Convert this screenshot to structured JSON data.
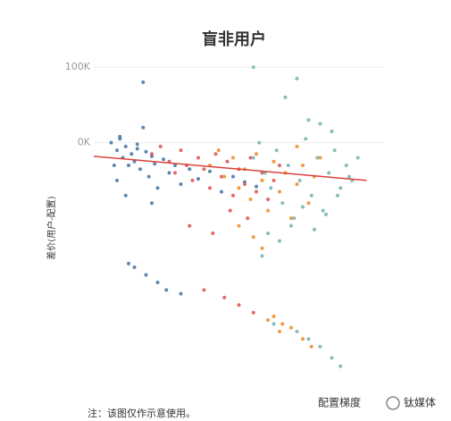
{
  "chart_data": {
    "type": "scatter",
    "title": "盲非用户",
    "y_label": "差价(用户-配置)",
    "x_label": "配置梯度",
    "note": "注：该图仅作示意使用。",
    "watermark": "钛媒体",
    "xlim": [
      0,
      100
    ],
    "ylim": [
      -320000,
      112000
    ],
    "yticks": [
      {
        "value": 100000,
        "label": "100K"
      },
      {
        "value": 0,
        "label": "0K"
      }
    ],
    "grid": true,
    "series": [
      {
        "color": "#4e79a7",
        "x": [
          6,
          8,
          9,
          10,
          11,
          12,
          13,
          14,
          15,
          16,
          17,
          18,
          19,
          20,
          21,
          22,
          24,
          26,
          28,
          30,
          33,
          36,
          40,
          44,
          48,
          52,
          56,
          12,
          14,
          18,
          22,
          25,
          30,
          8,
          11,
          15,
          20,
          9,
          17,
          7
        ],
        "values": [
          0,
          -10000,
          5000,
          -20000,
          -5000,
          -30000,
          -15000,
          -25000,
          -8000,
          -35000,
          20000,
          -12000,
          -45000,
          -18000,
          -28000,
          -60000,
          -22000,
          -40000,
          -30000,
          -55000,
          -35000,
          -48000,
          -38000,
          -65000,
          -45000,
          -52000,
          -58000,
          -160000,
          -165000,
          -175000,
          -185000,
          -195000,
          -200000,
          -50000,
          -70000,
          -2000,
          -80000,
          8000,
          80000,
          -30000
        ]
      },
      {
        "color": "#e15759",
        "x": [
          20,
          23,
          26,
          28,
          30,
          32,
          34,
          36,
          38,
          40,
          42,
          44,
          46,
          48,
          50,
          52,
          54,
          56,
          58,
          60,
          62,
          64,
          33,
          41,
          47,
          53,
          45,
          50,
          55,
          38
        ],
        "values": [
          -15000,
          -5000,
          -25000,
          -40000,
          -10000,
          -30000,
          -50000,
          -20000,
          -35000,
          -60000,
          -15000,
          -45000,
          -25000,
          -70000,
          -35000,
          -55000,
          -20000,
          -65000,
          -40000,
          -75000,
          -50000,
          -30000,
          -110000,
          -120000,
          -90000,
          -100000,
          -205000,
          -215000,
          -225000,
          -195000
        ]
      },
      {
        "color": "#f28e2b",
        "x": [
          40,
          43,
          45,
          48,
          50,
          52,
          54,
          56,
          58,
          60,
          62,
          64,
          66,
          68,
          70,
          72,
          74,
          76,
          78,
          55,
          58,
          62,
          65,
          60,
          64,
          68,
          72,
          75,
          50,
          70
        ],
        "values": [
          -30000,
          -10000,
          -45000,
          -20000,
          -60000,
          -35000,
          -75000,
          -15000,
          -50000,
          -90000,
          -25000,
          -65000,
          -40000,
          -100000,
          -55000,
          -30000,
          -80000,
          -45000,
          -20000,
          -125000,
          -140000,
          -230000,
          -240000,
          -235000,
          -250000,
          -245000,
          -260000,
          -270000,
          -110000,
          -5000
        ]
      },
      {
        "color": "#76b7b2",
        "x": [
          55,
          57,
          59,
          61,
          63,
          65,
          67,
          69,
          71,
          73,
          75,
          77,
          79,
          81,
          83,
          85,
          87,
          89,
          91,
          60,
          64,
          68,
          72,
          76,
          80,
          84,
          88,
          70,
          74,
          78,
          55,
          66,
          70,
          74,
          78,
          82,
          85,
          62,
          82,
          58
        ],
        "values": [
          -20000,
          0,
          -40000,
          -60000,
          -10000,
          -80000,
          -30000,
          -100000,
          -50000,
          5000,
          -70000,
          -20000,
          -90000,
          -40000,
          -10000,
          -60000,
          -30000,
          -50000,
          -20000,
          -120000,
          -130000,
          -110000,
          -85000,
          -115000,
          -95000,
          -70000,
          -45000,
          -250000,
          -260000,
          -270000,
          100000,
          60000,
          85000,
          30000,
          25000,
          15000,
          -296000,
          -240000,
          -285000,
          -150000
        ]
      }
    ],
    "trend": {
      "color": "#d9423a",
      "x": [
        0,
        94
      ],
      "values": [
        -18000,
        -50000
      ]
    }
  }
}
